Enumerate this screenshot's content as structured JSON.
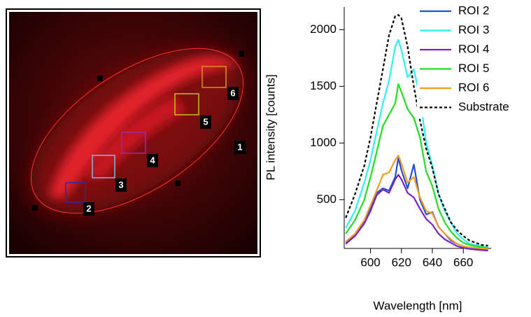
{
  "image": {
    "roi_labels": [
      "1",
      "2",
      "3",
      "4",
      "5",
      "6"
    ]
  },
  "chart_data": {
    "type": "line",
    "x_label": "Wavelength [nm]",
    "y_label": "PL intensity [counts]",
    "x": [
      584,
      590,
      596,
      600,
      604,
      608,
      612,
      616,
      618,
      620,
      624,
      628,
      632,
      636,
      640,
      644,
      648,
      652,
      656,
      660,
      664,
      668,
      672,
      676
    ],
    "series": [
      {
        "name": "ROI 2",
        "color": "#1f4fd6",
        "values": [
          120,
          190,
          300,
          420,
          560,
          600,
          580,
          700,
          870,
          760,
          600,
          810,
          500,
          370,
          390,
          260,
          200,
          140,
          110,
          90,
          75,
          70,
          65,
          60
        ]
      },
      {
        "name": "ROI 3",
        "color": "#33eef0",
        "values": [
          250,
          400,
          650,
          850,
          1100,
          1350,
          1550,
          1850,
          1910,
          1820,
          1580,
          1650,
          1400,
          1000,
          800,
          550,
          400,
          300,
          200,
          150,
          110,
          100,
          90,
          80
        ]
      },
      {
        "name": "ROI 4",
        "color": "#7a22c8",
        "values": [
          110,
          180,
          290,
          400,
          540,
          590,
          560,
          680,
          720,
          680,
          560,
          520,
          420,
          330,
          280,
          200,
          150,
          120,
          90,
          75,
          65,
          60,
          55,
          50
        ]
      },
      {
        "name": "ROI 5",
        "color": "#22dd22",
        "values": [
          200,
          320,
          500,
          700,
          920,
          1150,
          1250,
          1350,
          1520,
          1450,
          1300,
          1220,
          1050,
          750,
          620,
          420,
          300,
          220,
          160,
          120,
          100,
          90,
          80,
          75
        ]
      },
      {
        "name": "ROI 6",
        "color": "#f0a020",
        "values": [
          130,
          200,
          320,
          450,
          580,
          720,
          740,
          850,
          890,
          820,
          650,
          700,
          520,
          400,
          380,
          260,
          200,
          150,
          110,
          90,
          80,
          75,
          70,
          65
        ]
      },
      {
        "name": "Substrate",
        "color": "#000000",
        "style": "dashed",
        "values": [
          340,
          550,
          800,
          1050,
          1350,
          1650,
          1950,
          2120,
          2130,
          2100,
          1850,
          1500,
          1200,
          950,
          780,
          550,
          420,
          300,
          230,
          180,
          140,
          120,
          100,
          95
        ]
      }
    ],
    "xlim": [
      583,
      678
    ],
    "xticks": [
      600,
      620,
      640,
      660
    ],
    "ylim": [
      70,
      2200
    ],
    "yticks": [
      500,
      1000,
      1500,
      2000
    ],
    "grid": false,
    "legend": "upper right"
  }
}
